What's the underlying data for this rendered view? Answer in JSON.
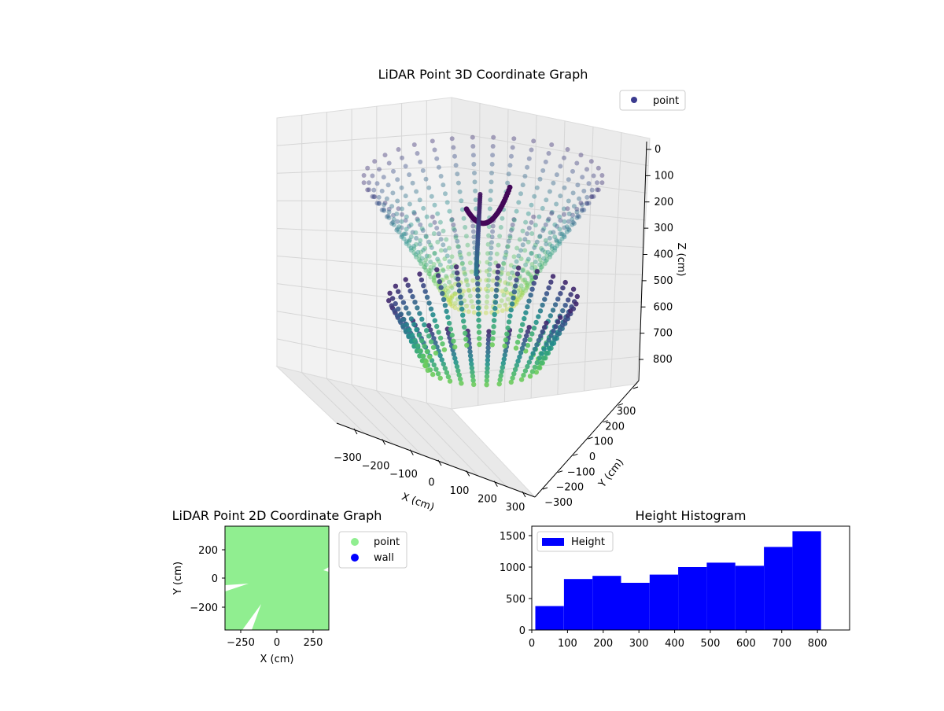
{
  "chart_data": [
    {
      "type": "scatter3d",
      "title": "LiDAR Point 3D Coordinate Graph",
      "xlabel": "X (cm)",
      "ylabel": "Y (cm)",
      "zlabel": "Z (cm)",
      "xticks": [
        "−300",
        "−200",
        "−100",
        "0",
        "100",
        "200",
        "300"
      ],
      "yticks": [
        "−300",
        "−200",
        "−100",
        "0",
        "100",
        "200",
        "300"
      ],
      "zticks": [
        "0",
        "100",
        "200",
        "300",
        "400",
        "500",
        "600",
        "700",
        "800"
      ],
      "xlim": [
        -350,
        350
      ],
      "ylim": [
        -350,
        350
      ],
      "zlim": [
        0,
        850
      ],
      "z_inverted": true,
      "colormap": "viridis",
      "legend": {
        "placement": "top-right",
        "entries": [
          {
            "label": "point",
            "color": "#3b3b8f"
          }
        ]
      },
      "grid": true
    },
    {
      "type": "scatter",
      "title": "LiDAR Point 2D Coordinate Graph",
      "xlabel": "X (cm)",
      "ylabel": "Y (cm)",
      "xlim": [
        -350,
        350
      ],
      "ylim": [
        -350,
        350
      ],
      "xticks": [
        "−250",
        "0",
        "250"
      ],
      "yticks": [
        "200",
        "0",
        "−200"
      ],
      "series": [
        {
          "name": "point",
          "color": "#90ee90"
        },
        {
          "name": "wall",
          "color": "#0000ff"
        }
      ],
      "legend": {
        "placement": "outside-right"
      }
    },
    {
      "type": "bar",
      "title": "Height Histogram",
      "xlim": [
        0,
        890
      ],
      "ylim": [
        0,
        1650
      ],
      "xticks": [
        "0",
        "100",
        "200",
        "300",
        "400",
        "500",
        "600",
        "700",
        "800"
      ],
      "yticks": [
        "0",
        "500",
        "1000",
        "1500"
      ],
      "bin_edges": [
        10,
        90,
        170,
        250,
        330,
        410,
        490,
        570,
        650,
        730,
        810
      ],
      "values": [
        380,
        810,
        860,
        750,
        880,
        1000,
        1070,
        1020,
        1320,
        1570
      ],
      "series": [
        {
          "name": "Height",
          "color": "#0000ff"
        }
      ],
      "legend": {
        "placement": "top-left"
      }
    }
  ]
}
